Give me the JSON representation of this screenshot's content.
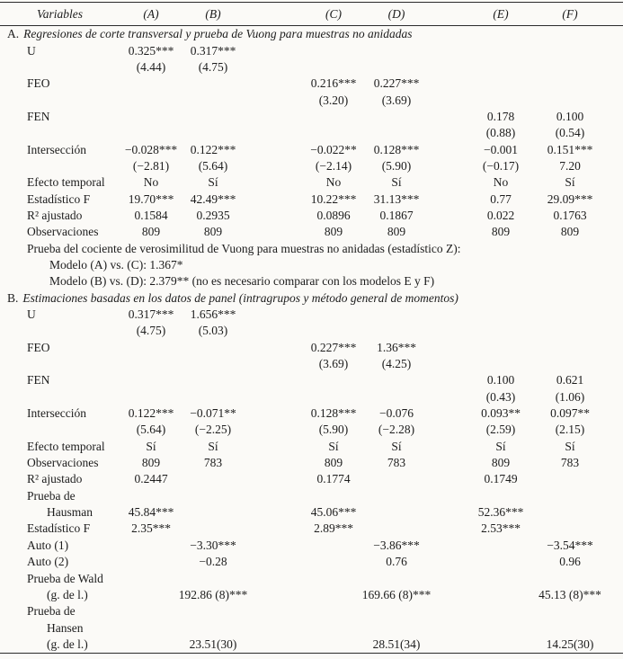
{
  "table": {
    "columns": [
      "Variables",
      "(A)",
      "(B)",
      "(C)",
      "(D)",
      "(E)",
      "(F)"
    ],
    "sections": [
      {
        "prefix": "A.",
        "title": "Regresiones de corte transversal y prueba de Vuong para muestras no anidadas",
        "rows": [
          {
            "label": "U",
            "indent": 1,
            "cells": [
              "0.325***",
              "0.317***",
              "",
              "",
              "",
              ""
            ]
          },
          {
            "label": "",
            "indent": 1,
            "cells": [
              "(4.44)",
              "(4.75)",
              "",
              "",
              "",
              ""
            ]
          },
          {
            "label": "FEO",
            "indent": 1,
            "cells": [
              "",
              "",
              "0.216***",
              "0.227***",
              "",
              ""
            ]
          },
          {
            "label": "",
            "indent": 1,
            "cells": [
              "",
              "",
              "(3.20)",
              "(3.69)",
              "",
              ""
            ]
          },
          {
            "label": "FEN",
            "indent": 1,
            "cells": [
              "",
              "",
              "",
              "",
              "0.178",
              "0.100"
            ]
          },
          {
            "label": "",
            "indent": 1,
            "cells": [
              "",
              "",
              "",
              "",
              "(0.88)",
              "(0.54)"
            ]
          },
          {
            "label": "Intersección",
            "indent": 1,
            "cells": [
              "−0.028***",
              "0.122***",
              "−0.022**",
              "0.128***",
              "−0.001",
              "0.151***"
            ]
          },
          {
            "label": "",
            "indent": 1,
            "cells": [
              "(−2.81)",
              "(5.64)",
              "(−2.14)",
              "(5.90)",
              "(−0.17)",
              "7.20"
            ]
          },
          {
            "label": "Efecto temporal",
            "indent": 1,
            "cells": [
              "No",
              "Sí",
              "No",
              "Sí",
              "No",
              "Sí"
            ]
          },
          {
            "label": "Estadístico F",
            "indent": 1,
            "cells": [
              "19.70***",
              "42.49***",
              "10.22***",
              "31.13***",
              "0.77",
              "29.09***"
            ]
          },
          {
            "label": "R² ajustado",
            "indent": 1,
            "cells": [
              "0.1584",
              "0.2935",
              "0.0896",
              "0.1867",
              "0.022",
              "0.1763"
            ]
          },
          {
            "label": "Observaciones",
            "indent": 1,
            "cells": [
              "809",
              "809",
              "809",
              "809",
              "809",
              "809"
            ]
          }
        ],
        "notes": [
          {
            "indent": 1,
            "text": "Prueba del cociente de verosimilitud de Vuong para muestras no anidadas (estadístico Z):"
          },
          {
            "indent": 2,
            "text": "Modelo (A) vs. (C): 1.367*"
          },
          {
            "indent": 2,
            "text": "Modelo (B) vs. (D): 2.379** (no es necesario comparar con los modelos E y F)"
          }
        ]
      },
      {
        "prefix": "B.",
        "title": "Estimaciones basadas en los datos de panel (intragrupos y método general de momentos)",
        "rows": [
          {
            "label": "U",
            "indent": 1,
            "cells": [
              "0.317***",
              "1.656***",
              "",
              "",
              "",
              ""
            ]
          },
          {
            "label": "",
            "indent": 1,
            "cells": [
              "(4.75)",
              "(5.03)",
              "",
              "",
              "",
              ""
            ]
          },
          {
            "label": "FEO",
            "indent": 1,
            "cells": [
              "",
              "",
              "0.227***",
              "1.36***",
              "",
              ""
            ]
          },
          {
            "label": "",
            "indent": 1,
            "cells": [
              "",
              "",
              "(3.69)",
              "(4.25)",
              "",
              ""
            ]
          },
          {
            "label": "FEN",
            "indent": 1,
            "cells": [
              "",
              "",
              "",
              "",
              "0.100",
              "0.621"
            ]
          },
          {
            "label": "",
            "indent": 1,
            "cells": [
              "",
              "",
              "",
              "",
              "(0.43)",
              "(1.06)"
            ]
          },
          {
            "label": "Intersección",
            "indent": 1,
            "cells": [
              "0.122***",
              "−0.071**",
              "0.128***",
              "−0.076",
              "0.093**",
              "0.097**"
            ]
          },
          {
            "label": "",
            "indent": 1,
            "cells": [
              "(5.64)",
              "(−2.25)",
              "(5.90)",
              "(−2.28)",
              "(2.59)",
              "(2.15)"
            ]
          },
          {
            "label": "Efecto temporal",
            "indent": 1,
            "cells": [
              "Sí",
              "Sí",
              "Sí",
              "Sí",
              "Sí",
              "Sí"
            ]
          },
          {
            "label": "Observaciones",
            "indent": 1,
            "cells": [
              "809",
              "783",
              "809",
              "783",
              "809",
              "783"
            ]
          },
          {
            "label": "R² ajustado",
            "indent": 1,
            "cells": [
              "0.2447",
              "",
              "0.1774",
              "",
              "0.1749",
              ""
            ]
          },
          {
            "label": "Prueba de",
            "indent": 1,
            "cells": [
              "",
              "",
              "",
              "",
              "",
              ""
            ]
          },
          {
            "label": "Hausman",
            "indent": 2,
            "cells": [
              "45.84***",
              "",
              "45.06***",
              "",
              "52.36***",
              ""
            ]
          },
          {
            "label": "Estadístico F",
            "indent": 1,
            "cells": [
              "2.35***",
              "",
              "2.89***",
              "",
              "2.53***",
              ""
            ]
          },
          {
            "label": "Auto (1)",
            "indent": 1,
            "cells": [
              "",
              "−3.30***",
              "",
              "−3.86***",
              "",
              "−3.54***"
            ]
          },
          {
            "label": "Auto (2)",
            "indent": 1,
            "cells": [
              "",
              "−0.28",
              "",
              "0.76",
              "",
              "0.96"
            ]
          },
          {
            "label": "Prueba de Wald",
            "indent": 1,
            "cells": [
              "",
              "",
              "",
              "",
              "",
              ""
            ]
          },
          {
            "label": "(g. de l.)",
            "indent": 2,
            "cells": [
              "",
              "192.86 (8)***",
              "",
              "169.66 (8)***",
              "",
              "45.13 (8)***"
            ]
          },
          {
            "label": "Prueba de",
            "indent": 1,
            "cells": [
              "",
              "",
              "",
              "",
              "",
              ""
            ]
          },
          {
            "label": "Hansen",
            "indent": 2,
            "cells": [
              "",
              "",
              "",
              "",
              "",
              ""
            ]
          },
          {
            "label": "(g. de l.)",
            "indent": 2,
            "cells": [
              "",
              "23.51(30)",
              "",
              "28.51(34)",
              "",
              "14.25(30)"
            ]
          }
        ],
        "notes": []
      }
    ]
  }
}
